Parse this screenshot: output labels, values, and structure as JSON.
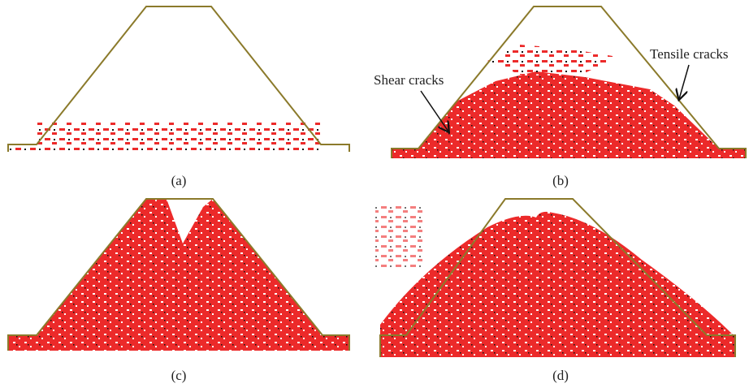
{
  "panels": [
    {
      "label": "(a)"
    },
    {
      "label": "(b)"
    },
    {
      "label": "(c)"
    },
    {
      "label": "(d)"
    }
  ],
  "annotations": {
    "shear": "Shear cracks",
    "tensile": "Tensile cracks"
  }
}
